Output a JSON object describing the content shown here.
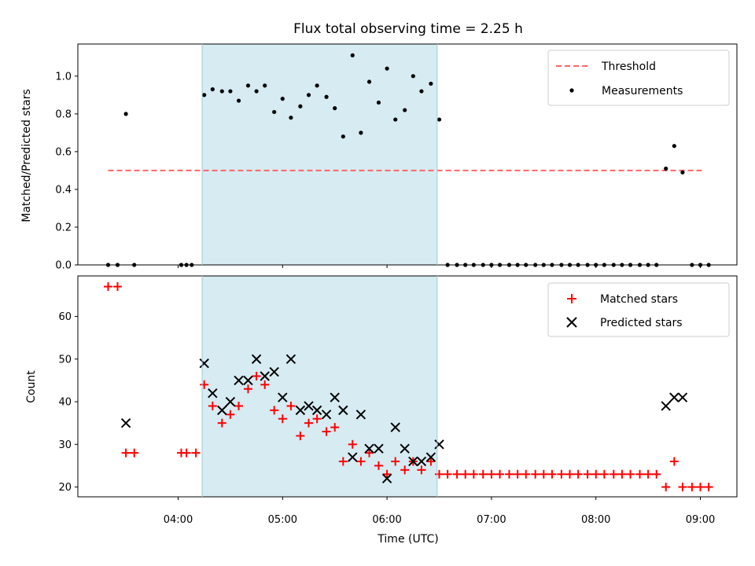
{
  "chart_data": {
    "type": "scatter",
    "title": "Flux total observing time = 2.25 h",
    "xlabel": "Time (UTC)",
    "x_tick_labels": [
      "04:00",
      "05:00",
      "06:00",
      "07:00",
      "08:00",
      "09:00"
    ],
    "x_tick_values": [
      4.0,
      5.0,
      6.0,
      7.0,
      8.0,
      9.0
    ],
    "xlim": [
      3.04,
      9.35
    ],
    "shaded_span": {
      "x_start": 4.23,
      "x_end": 6.48,
      "color": "#add8e6"
    },
    "panels": [
      {
        "ylabel": "Matched/Predicted stars",
        "ylim": [
          0,
          1.17
        ],
        "y_ticks": [
          0.0,
          0.2,
          0.4,
          0.6,
          0.8,
          1.0
        ],
        "y_tick_labels": [
          "0.0",
          "0.2",
          "0.4",
          "0.6",
          "0.8",
          "1.0"
        ],
        "legend": {
          "placement": "top-right",
          "entries": [
            "Threshold",
            "Measurements"
          ]
        },
        "threshold": {
          "name": "Threshold",
          "value": 0.5,
          "x_range": [
            3.33,
            9.03
          ],
          "color": "#ff6666",
          "style": "dashed"
        },
        "measurements": {
          "name": "Measurements",
          "color": "#000000",
          "x": [
            3.33,
            3.42,
            3.5,
            3.58,
            4.03,
            4.08,
            4.13,
            4.25,
            4.33,
            4.42,
            4.5,
            4.58,
            4.67,
            4.75,
            4.83,
            4.92,
            5.0,
            5.08,
            5.17,
            5.25,
            5.33,
            5.42,
            5.5,
            5.58,
            5.67,
            5.75,
            5.83,
            5.92,
            6.0,
            6.08,
            6.17,
            6.25,
            6.33,
            6.42,
            6.5,
            6.58,
            6.67,
            6.75,
            6.83,
            6.92,
            7.0,
            7.08,
            7.17,
            7.25,
            7.33,
            7.42,
            7.5,
            7.58,
            7.67,
            7.75,
            7.83,
            7.92,
            8.0,
            8.08,
            8.17,
            8.25,
            8.33,
            8.42,
            8.5,
            8.58,
            8.67,
            8.75,
            8.83,
            8.92,
            9.0,
            9.08
          ],
          "y": [
            0,
            0,
            0.8,
            0,
            0,
            0,
            0,
            0.9,
            0.93,
            0.92,
            0.92,
            0.87,
            0.95,
            0.92,
            0.95,
            0.81,
            0.88,
            0.78,
            0.84,
            0.9,
            0.95,
            0.89,
            0.83,
            0.68,
            1.11,
            0.7,
            0.97,
            0.86,
            1.04,
            0.77,
            0.82,
            1.0,
            0.92,
            0.96,
            0.77,
            0,
            0,
            0,
            0,
            0,
            0,
            0,
            0,
            0,
            0,
            0,
            0,
            0,
            0,
            0,
            0,
            0,
            0,
            0,
            0,
            0,
            0,
            0,
            0,
            0,
            0.51,
            0.63,
            0.49,
            0,
            0,
            0
          ]
        }
      },
      {
        "ylabel": "Count",
        "ylim": [
          17.7,
          69.5
        ],
        "y_ticks": [
          20,
          30,
          40,
          50,
          60
        ],
        "y_tick_labels": [
          "20",
          "30",
          "40",
          "50",
          "60"
        ],
        "legend": {
          "placement": "top-right",
          "entries": [
            "Matched stars",
            "Predicted stars"
          ]
        },
        "matched": {
          "name": "Matched stars",
          "color": "#ff0000",
          "marker": "plus",
          "x": [
            3.33,
            3.42,
            3.5,
            3.58,
            4.03,
            4.08,
            4.17,
            4.25,
            4.33,
            4.42,
            4.5,
            4.58,
            4.67,
            4.75,
            4.83,
            4.92,
            5.0,
            5.08,
            5.17,
            5.25,
            5.33,
            5.42,
            5.5,
            5.58,
            5.67,
            5.75,
            5.83,
            5.92,
            6.0,
            6.08,
            6.17,
            6.25,
            6.33,
            6.42,
            6.5,
            6.58,
            6.67,
            6.75,
            6.83,
            6.92,
            7.0,
            7.08,
            7.17,
            7.25,
            7.33,
            7.42,
            7.5,
            7.58,
            7.67,
            7.75,
            7.83,
            7.92,
            8.0,
            8.08,
            8.17,
            8.25,
            8.33,
            8.42,
            8.5,
            8.58,
            8.67,
            8.75,
            8.83,
            8.92,
            9.0,
            9.08
          ],
          "y": [
            67,
            67,
            28,
            28,
            28,
            28,
            28,
            44,
            39,
            35,
            37,
            39,
            43,
            46,
            44,
            38,
            36,
            39,
            32,
            35,
            36,
            33,
            34,
            26,
            30,
            26,
            28,
            25,
            23,
            26,
            24,
            26,
            24,
            26,
            23,
            23,
            23,
            23,
            23,
            23,
            23,
            23,
            23,
            23,
            23,
            23,
            23,
            23,
            23,
            23,
            23,
            23,
            23,
            23,
            23,
            23,
            23,
            23,
            23,
            23,
            20,
            26,
            20,
            20,
            20,
            20
          ]
        },
        "predicted": {
          "name": "Predicted stars",
          "color": "#000000",
          "marker": "x",
          "x": [
            3.5,
            4.25,
            4.33,
            4.42,
            4.5,
            4.58,
            4.67,
            4.75,
            4.83,
            4.92,
            5.0,
            5.08,
            5.17,
            5.25,
            5.33,
            5.42,
            5.5,
            5.58,
            5.67,
            5.75,
            5.83,
            5.92,
            6.0,
            6.08,
            6.17,
            6.25,
            6.33,
            6.42,
            6.5,
            8.67,
            8.75,
            8.83
          ],
          "y": [
            35,
            49,
            42,
            38,
            40,
            45,
            45,
            50,
            46,
            47,
            41,
            50,
            38,
            39,
            38,
            37,
            41,
            38,
            27,
            37,
            29,
            29,
            22,
            34,
            29,
            26,
            26,
            27,
            30,
            39,
            41,
            41
          ]
        }
      }
    ]
  }
}
